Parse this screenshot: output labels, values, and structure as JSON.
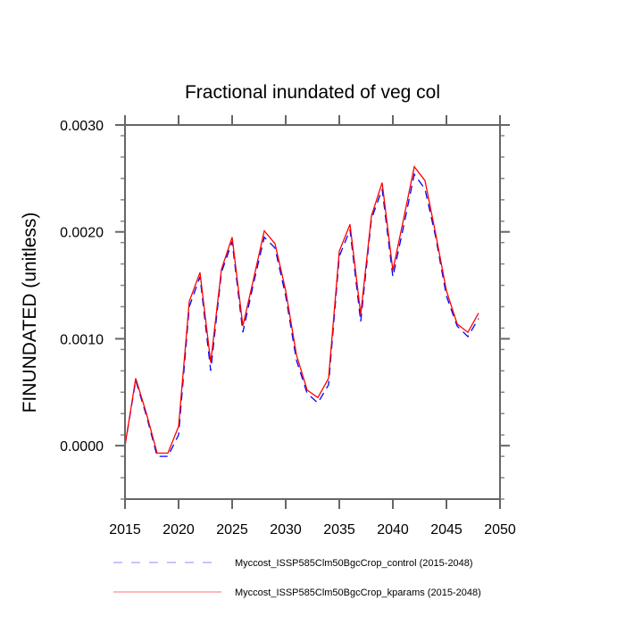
{
  "chart_data": {
    "type": "line",
    "title": "Fractional inundated of veg col",
    "xlabel": "",
    "ylabel": "FINUNDATED  (unitless)",
    "xlim": [
      2015,
      2050
    ],
    "ylim": [
      -0.0005,
      0.003
    ],
    "x_ticks": [
      "2015",
      "2020",
      "2025",
      "2030",
      "2035",
      "2040",
      "2045",
      "2050"
    ],
    "x_tick_values": [
      2015,
      2020,
      2025,
      2030,
      2035,
      2040,
      2045,
      2050
    ],
    "y_ticks": [
      "0.0000",
      "0.0010",
      "0.0020",
      "0.0030"
    ],
    "y_tick_values": [
      0.0,
      0.001,
      0.002,
      0.003
    ],
    "grid": false,
    "legend_position": "bottom",
    "x": [
      2015,
      2016,
      2017,
      2018,
      2019,
      2020,
      2021,
      2022,
      2023,
      2024,
      2025,
      2026,
      2027,
      2028,
      2029,
      2030,
      2031,
      2032,
      2033,
      2034,
      2035,
      2036,
      2037,
      2038,
      2039,
      2040,
      2041,
      2042,
      2043,
      2044,
      2045,
      2046,
      2047,
      2048
    ],
    "series": [
      {
        "name": "Myccost_ISSP585Clm50BgcCrop_control (2015-2048)",
        "color": "#0000ff",
        "style": "dashed",
        "values": [
          0.0,
          0.00061,
          0.00028,
          -0.0001,
          -0.0001,
          0.0001,
          0.0013,
          0.00158,
          0.0007,
          0.00162,
          0.00191,
          0.00106,
          0.00152,
          0.00195,
          0.00185,
          0.0014,
          0.0008,
          0.00049,
          0.0004,
          0.00057,
          0.00177,
          0.00202,
          0.00116,
          0.00212,
          0.0024,
          0.00158,
          0.00205,
          0.00254,
          0.0024,
          0.00195,
          0.0014,
          0.00112,
          0.00102,
          0.00119
        ]
      },
      {
        "name": "Myccost_ISSP585Clm50BgcCrop_kparams (2015-2048)",
        "color": "#ff0000",
        "style": "solid",
        "values": [
          0.0,
          0.00063,
          0.0003,
          -7e-05,
          -7e-05,
          0.00018,
          0.00135,
          0.00162,
          0.00078,
          0.00165,
          0.00195,
          0.00112,
          0.00156,
          0.00201,
          0.00189,
          0.00145,
          0.00085,
          0.00052,
          0.00045,
          0.00063,
          0.00182,
          0.00207,
          0.00123,
          0.00215,
          0.00246,
          0.00164,
          0.00212,
          0.00261,
          0.00248,
          0.00198,
          0.00145,
          0.00114,
          0.00106,
          0.00124
        ]
      }
    ]
  }
}
